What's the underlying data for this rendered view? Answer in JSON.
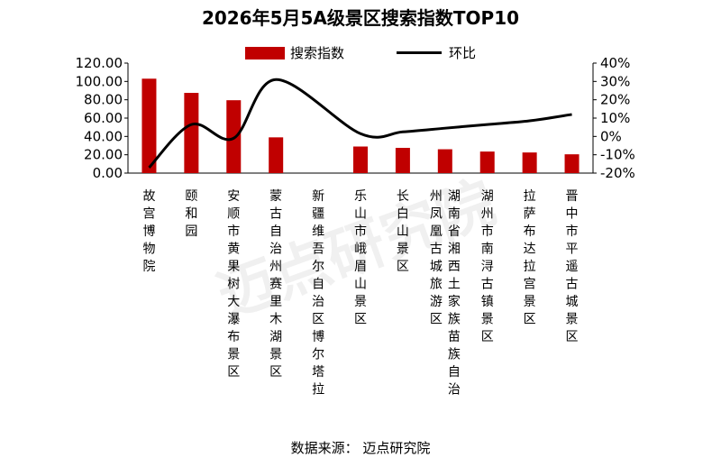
{
  "chart_data": {
    "type": "bar",
    "title": "2026年5月5A级景区搜索指数TOP10",
    "categories": [
      "故宫博物院",
      "颐和园",
      "安顺市黄果树大瀑布景区",
      "蒙古自治州赛里木湖景区",
      "新疆维吾尔自治区博尔塔拉",
      "乐山市峨眉山景区",
      "长白山景区",
      "湖南省湘西土家族苗族自治州凤凰古城旅游区",
      "湖州市南浔古镇景区",
      "拉萨布达拉宫景区",
      "晋中市平遥古城景区"
    ],
    "x_tick_columns": [
      [
        "故宫博物院"
      ],
      [
        "颐和园"
      ],
      [
        "安顺市黄果树大瀑布景区"
      ],
      [
        "蒙古自治州赛里木湖景区"
      ],
      [
        "新疆维吾尔自治区博尔塔拉"
      ],
      [
        "乐山市峨眉山景区"
      ],
      [
        "长白山景区"
      ],
      [
        "州凤凰古城旅游区",
        "湖南省湘西土家族苗族自治"
      ],
      [
        "湖州市南浔古镇景区"
      ],
      [
        "拉萨布达拉宫景区"
      ],
      [
        "晋中市平遥古城景区"
      ]
    ],
    "series": [
      {
        "name": "搜索指数",
        "type": "bar",
        "axis": "left",
        "color": "#c00000",
        "values": [
          103,
          87.5,
          79.5,
          39,
          null,
          29,
          27.5,
          26,
          23.5,
          22.5,
          20.5
        ]
      },
      {
        "name": "环比",
        "type": "line",
        "axis": "right",
        "color": "#000000",
        "smooth": true,
        "values": [
          -17,
          6.5,
          -1,
          31,
          null,
          1.5,
          2.5,
          4.5,
          6.5,
          8.5,
          12
        ]
      }
    ],
    "y_left": {
      "ticks": [
        "120.00",
        "100.00",
        "80.00",
        "60.00",
        "40.00",
        "20.00",
        "0.00"
      ],
      "ylim": [
        0,
        120
      ]
    },
    "y_right": {
      "ticks": [
        "40%",
        "30%",
        "20%",
        "10%",
        "0%",
        "-10%",
        "-20%"
      ],
      "ylim": [
        -20,
        40
      ]
    },
    "legend": "top",
    "grid": false
  },
  "watermark_text": "迈点研究院",
  "source": "数据来源：  迈点研究院"
}
